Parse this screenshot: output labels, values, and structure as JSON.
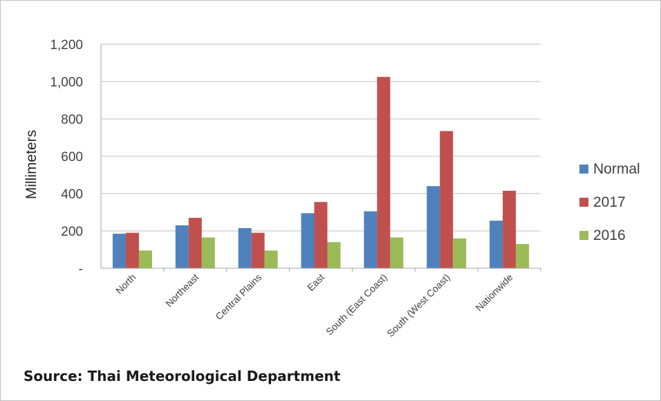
{
  "chart_data": {
    "type": "bar",
    "categories": [
      "North",
      "Northeast",
      "Central Plains",
      "East",
      "South (East Coast)",
      "South (West Coast)",
      "Nationwide"
    ],
    "series": [
      {
        "name": "Normal",
        "color": "#4f81bd",
        "values": [
          185,
          230,
          215,
          295,
          305,
          440,
          255
        ]
      },
      {
        "name": "2017",
        "color": "#c0504d",
        "values": [
          190,
          270,
          190,
          355,
          1025,
          735,
          415
        ]
      },
      {
        "name": "2016",
        "color": "#9bbb59",
        "values": [
          95,
          165,
          95,
          140,
          165,
          160,
          130
        ]
      }
    ],
    "ylabel": "Millimeters",
    "xlabel": "",
    "ylim": [
      0,
      1200
    ],
    "yticks": [
      {
        "value": 0,
        "label": "-"
      },
      {
        "value": 200,
        "label": "200"
      },
      {
        "value": 400,
        "label": "400"
      },
      {
        "value": 600,
        "label": "600"
      },
      {
        "value": 800,
        "label": "800"
      },
      {
        "value": 1000,
        "label": "1,000"
      },
      {
        "value": 1200,
        "label": "1,200"
      }
    ],
    "grid": true,
    "legend": "right"
  },
  "source": "Source: Thai Meteorological Department"
}
